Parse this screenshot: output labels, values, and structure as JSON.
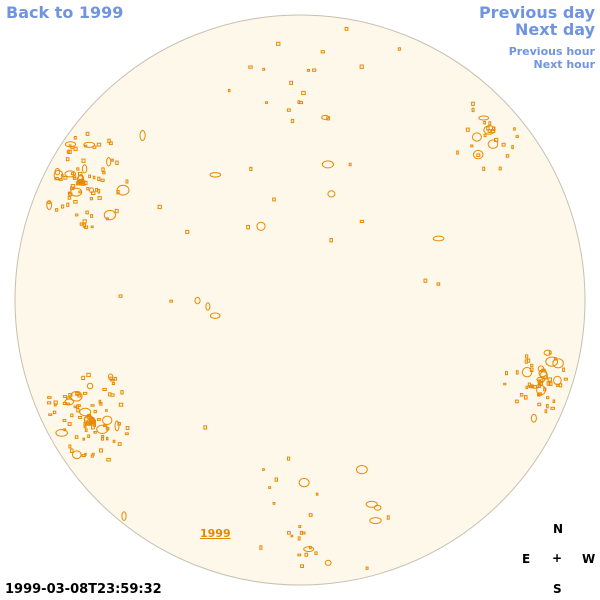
{
  "nav": {
    "back": "Back to 1999",
    "previous_day": "Previous day",
    "next_day": "Next day",
    "previous_hour": "Previous hour",
    "next_hour": "Next hour"
  },
  "year_link": "1999",
  "timestamp": "1999-03-08T23:59:32",
  "compass": {
    "north": "N",
    "east": "E",
    "center": "+",
    "west": "W",
    "south": "S"
  }
}
